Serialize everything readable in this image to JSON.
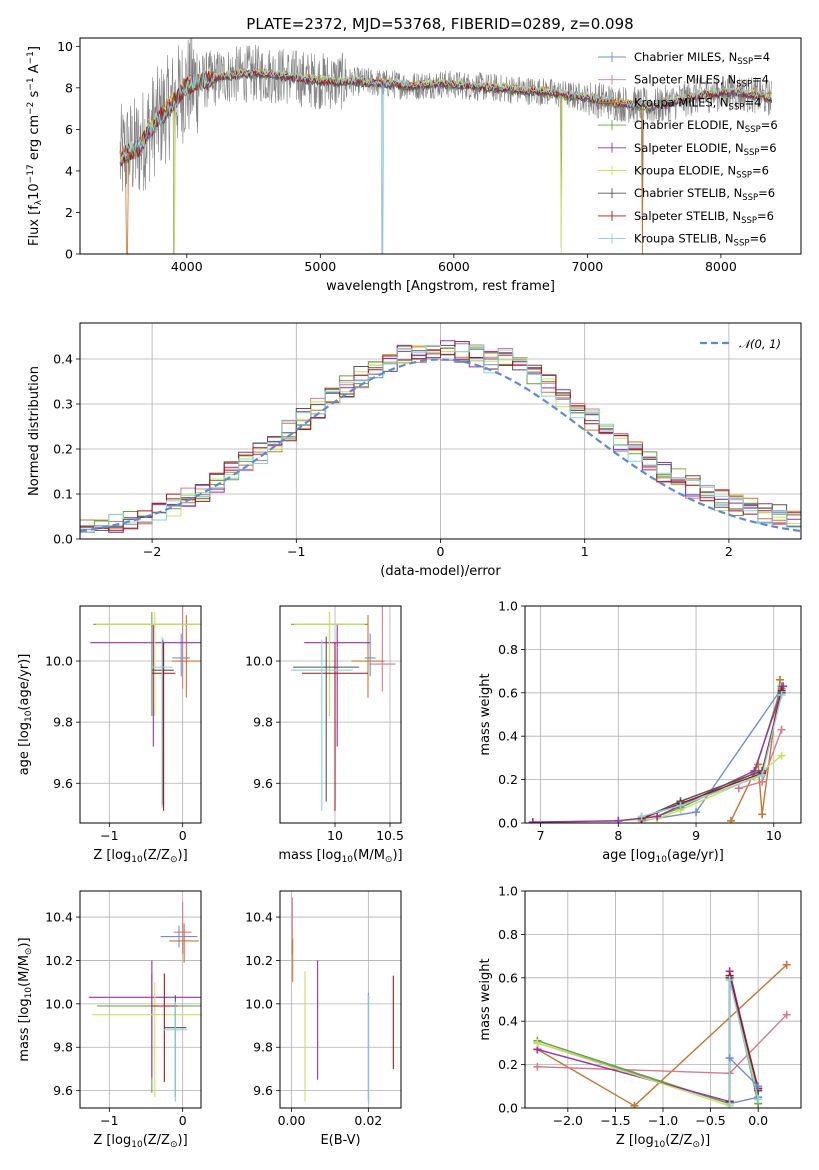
{
  "title": "PLATE=2372, MJD=53768, FIBERID=0289, z=0.098",
  "colors": {
    "chabrier_miles": "#6d8fd6",
    "salpeter_miles": "#d8798f",
    "kroupa_miles": "#c8762e",
    "chabrier_elodie": "#66a33a",
    "salpeter_elodie": "#9b2fae",
    "kroupa_elodie": "#cde05a",
    "chabrier_stelib": "#555555",
    "salpeter_stelib": "#a21818",
    "kroupa_stelib": "#86d3dd",
    "gaussian": "#5b8bd6",
    "data": "#808080"
  },
  "legend_spectrum": [
    {
      "label": "Chabrier MILES, N",
      "sub": "SSP",
      "tail": "=4",
      "color": "#6d8fd6"
    },
    {
      "label": "Salpeter MILES, N",
      "sub": "SSP",
      "tail": "=4",
      "color": "#d8798f"
    },
    {
      "label": "Kroupa MILES, N",
      "sub": "SSP",
      "tail": "=4",
      "color": "#c8762e"
    },
    {
      "label": "Chabrier ELODIE, N",
      "sub": "SSP",
      "tail": "=6",
      "color": "#66a33a"
    },
    {
      "label": "Salpeter ELODIE, N",
      "sub": "SSP",
      "tail": "=6",
      "color": "#9b2fae"
    },
    {
      "label": "Kroupa ELODIE, N",
      "sub": "SSP",
      "tail": "=6",
      "color": "#cde05a"
    },
    {
      "label": "Chabrier STELIB, N",
      "sub": "SSP",
      "tail": "=6",
      "color": "#555555"
    },
    {
      "label": "Salpeter STELIB, N",
      "sub": "SSP",
      "tail": "=6",
      "color": "#a21818"
    },
    {
      "label": "Kroupa STELIB, N",
      "sub": "SSP",
      "tail": "=6",
      "color": "#86d3dd"
    }
  ],
  "legend_hist": {
    "label": "𝒩(0, 1)",
    "color": "#5b8bd6"
  },
  "chart_data": [
    {
      "id": "spectrum",
      "type": "line",
      "xlabel": "wavelength [Angstrom, rest frame]",
      "ylabel_parts": [
        "Flux [f",
        "λ",
        "10",
        "−17",
        " erg cm",
        "−2",
        " s",
        "−1",
        " A",
        "−1",
        "]"
      ],
      "xlim": [
        3200,
        8600
      ],
      "ylim": [
        0,
        10.4
      ],
      "xticks": [
        4000,
        5000,
        6000,
        7000,
        8000
      ],
      "yticks": [
        0,
        2,
        4,
        6,
        8,
        10
      ],
      "grid": false,
      "legend_position": "upper-right",
      "model_envelope": {
        "x": [
          3500,
          3550,
          3600,
          3650,
          3700,
          3800,
          3900,
          4000,
          4100,
          4300,
          4500,
          4700,
          4900,
          5100,
          5300,
          5500,
          5700,
          5900,
          6100,
          6300,
          6500,
          6700,
          6900,
          7100,
          7300,
          7500,
          7700,
          7900,
          8100,
          8300,
          8380
        ],
        "y": [
          4.6,
          4.9,
          5.0,
          5.2,
          5.8,
          6.6,
          7.3,
          8.1,
          8.3,
          8.6,
          8.7,
          8.6,
          8.4,
          8.3,
          8.3,
          8.2,
          8.1,
          8.2,
          8.1,
          8.0,
          7.9,
          7.8,
          7.6,
          7.4,
          7.2,
          7.1,
          7.4,
          7.7,
          7.8,
          7.6,
          7.5
        ]
      }
    },
    {
      "id": "residual-histogram",
      "type": "bar",
      "xlabel": "(data-model)/error",
      "ylabel": "Normed distribution",
      "xlim": [
        -2.5,
        2.5
      ],
      "ylim": [
        0,
        0.48
      ],
      "xticks": [
        -2,
        -1,
        0,
        1,
        2
      ],
      "yticks": [
        0.0,
        0.1,
        0.2,
        0.3,
        0.4
      ],
      "grid": true,
      "bin_width": 0.1,
      "legend_position": "upper-right"
    },
    {
      "id": "age-vs-Z",
      "type": "scatter",
      "xlabel_parts": [
        "Z [log",
        "10",
        "(Z/Z",
        "⊙",
        ")]"
      ],
      "ylabel_parts": [
        "age  [log",
        "10",
        "(age/yr)]"
      ],
      "xlim": [
        -1.4,
        0.25
      ],
      "ylim": [
        9.47,
        10.18
      ],
      "xticks": [
        -1,
        0
      ],
      "yticks": [
        9.6,
        9.8,
        10.0
      ],
      "grid": true,
      "points": [
        {
          "c": "chabrier_miles",
          "x": -0.02,
          "y": 10.01,
          "xerr": 0.12,
          "yerr": [
            0.06,
            0.08
          ]
        },
        {
          "c": "salpeter_miles",
          "x": 0.0,
          "y": 10.0,
          "xerr": 0.1,
          "yerr": [
            0.09,
            0.2
          ]
        },
        {
          "c": "kroupa_miles",
          "x": 0.05,
          "y": 10.0,
          "xerr": 0.2,
          "yerr": [
            0.12,
            0.15
          ]
        },
        {
          "c": "chabrier_elodie",
          "x": -0.42,
          "y": 10.12,
          "xerr": 0.8,
          "yerr": [
            0.3,
            0.04
          ]
        },
        {
          "c": "salpeter_elodie",
          "x": -0.4,
          "y": 10.06,
          "xerr": 0.86,
          "yerr": [
            0.34,
            0.06
          ]
        },
        {
          "c": "kroupa_elodie",
          "x": -0.38,
          "y": 10.12,
          "xerr": 0.8,
          "yerr": [
            0.3,
            0.04
          ]
        },
        {
          "c": "chabrier_stelib",
          "x": -0.27,
          "y": 9.97,
          "xerr": 0.15,
          "yerr": [
            0.44,
            0.1
          ]
        },
        {
          "c": "salpeter_stelib",
          "x": -0.26,
          "y": 9.96,
          "xerr": 0.16,
          "yerr": [
            0.45,
            0.1
          ]
        },
        {
          "c": "kroupa_stelib",
          "x": -0.28,
          "y": 9.98,
          "xerr": 0.14,
          "yerr": [
            0.46,
            0.1
          ]
        }
      ]
    },
    {
      "id": "age-vs-mass",
      "type": "scatter",
      "xlabel_parts": [
        "mass [log",
        "10",
        "(M/M",
        "⊙",
        ")]"
      ],
      "xlim": [
        9.5,
        10.6
      ],
      "ylim": [
        9.47,
        10.18
      ],
      "xticks": [
        10.0,
        10.5
      ],
      "yticks": [
        9.6,
        9.8,
        10.0
      ],
      "grid": true,
      "points": [
        {
          "c": "chabrier_miles",
          "x": 10.32,
          "y": 10.01,
          "xerr": 0.05,
          "yerr": [
            0.06,
            0.08
          ]
        },
        {
          "c": "salpeter_miles",
          "x": 10.43,
          "y": 9.99,
          "xerr": 0.12,
          "yerr": [
            0.09,
            0.2
          ]
        },
        {
          "c": "kroupa_miles",
          "x": 10.3,
          "y": 10.0,
          "xerr": 0.15,
          "yerr": [
            0.12,
            0.15
          ]
        },
        {
          "c": "chabrier_elodie",
          "x": 9.95,
          "y": 10.12,
          "xerr": 0.35,
          "yerr": [
            0.3,
            0.04
          ]
        },
        {
          "c": "salpeter_elodie",
          "x": 10.02,
          "y": 10.06,
          "xerr": 0.3,
          "yerr": [
            0.34,
            0.06
          ]
        },
        {
          "c": "kroupa_elodie",
          "x": 9.95,
          "y": 10.12,
          "xerr": 0.32,
          "yerr": [
            0.3,
            0.04
          ]
        },
        {
          "c": "chabrier_stelib",
          "x": 9.92,
          "y": 9.98,
          "xerr": 0.3,
          "yerr": [
            0.44,
            0.1
          ]
        },
        {
          "c": "salpeter_stelib",
          "x": 10.0,
          "y": 9.96,
          "xerr": 0.3,
          "yerr": [
            0.45,
            0.1
          ]
        },
        {
          "c": "kroupa_stelib",
          "x": 9.88,
          "y": 9.97,
          "xerr": 0.28,
          "yerr": [
            0.46,
            0.1
          ]
        }
      ]
    },
    {
      "id": "massweight-vs-age",
      "type": "line",
      "xlabel_parts": [
        "age  [log",
        "10",
        "(age/yr)]"
      ],
      "ylabel": "mass weight",
      "xlim": [
        6.8,
        10.35
      ],
      "ylim": [
        0,
        1
      ],
      "xticks": [
        7,
        8,
        9,
        10
      ],
      "yticks": [
        0.0,
        0.2,
        0.4,
        0.6,
        0.8,
        1.0
      ],
      "grid": true,
      "series": [
        {
          "c": "kroupa_miles",
          "x": [
            9.45,
            9.8,
            9.85,
            10.08
          ],
          "y": [
            0.01,
            0.27,
            0.04,
            0.66
          ]
        },
        {
          "c": "salpeter_miles",
          "x": [
            9.55,
            9.85,
            10.1
          ],
          "y": [
            0.16,
            0.19,
            0.43
          ]
        },
        {
          "c": "chabrier_miles",
          "x": [
            8.3,
            9.0,
            10.1
          ],
          "y": [
            0.01,
            0.05,
            0.62
          ]
        },
        {
          "c": "chabrier_elodie",
          "x": [
            6.9,
            8.0,
            8.5,
            8.8,
            9.75,
            10.1
          ],
          "y": [
            0.003,
            0.01,
            0.03,
            0.07,
            0.23,
            0.63
          ]
        },
        {
          "c": "kroupa_elodie",
          "x": [
            6.9,
            8.0,
            8.5,
            8.8,
            9.75,
            10.1
          ],
          "y": [
            0.002,
            0.01,
            0.02,
            0.06,
            0.21,
            0.31
          ]
        },
        {
          "c": "salpeter_elodie",
          "x": [
            6.9,
            8.0,
            8.5,
            8.8,
            9.75,
            10.12
          ],
          "y": [
            0.004,
            0.01,
            0.03,
            0.08,
            0.24,
            0.63
          ]
        },
        {
          "c": "chabrier_stelib",
          "x": [
            8.3,
            8.8,
            9.85,
            10.1
          ],
          "y": [
            0.02,
            0.1,
            0.24,
            0.6
          ]
        },
        {
          "c": "salpeter_stelib",
          "x": [
            8.3,
            8.8,
            9.85,
            10.1
          ],
          "y": [
            0.02,
            0.09,
            0.23,
            0.61
          ]
        },
        {
          "c": "kroupa_stelib",
          "x": [
            8.3,
            8.8,
            9.85,
            10.1
          ],
          "y": [
            0.03,
            0.08,
            0.22,
            0.59
          ]
        }
      ]
    },
    {
      "id": "mass-vs-Z",
      "type": "scatter",
      "xlabel_parts": [
        "Z [log",
        "10",
        "(Z/Z",
        "⊙",
        ")]"
      ],
      "ylabel_parts": [
        "mass [log",
        "10",
        "(M/M",
        "⊙",
        ")]"
      ],
      "xlim": [
        -1.4,
        0.25
      ],
      "ylim": [
        9.52,
        10.52
      ],
      "xticks": [
        -1,
        0
      ],
      "yticks": [
        9.6,
        9.8,
        10.0,
        10.2,
        10.4
      ],
      "grid": true,
      "points": [
        {
          "c": "chabrier_miles",
          "x": -0.05,
          "y": 10.31,
          "xerr": 0.25,
          "yerr": [
            0.05,
            0.05
          ]
        },
        {
          "c": "salpeter_miles",
          "x": 0.0,
          "y": 10.33,
          "xerr": 0.12,
          "yerr": [
            0.1,
            0.14
          ]
        },
        {
          "c": "kroupa_miles",
          "x": 0.02,
          "y": 10.29,
          "xerr": 0.2,
          "yerr": [
            0.1,
            0.08
          ]
        },
        {
          "c": "chabrier_elodie",
          "x": -0.42,
          "y": 9.99,
          "xerr": 0.75,
          "yerr": [
            0.4,
            0.15
          ]
        },
        {
          "c": "salpeter_elodie",
          "x": -0.42,
          "y": 10.03,
          "xerr": 0.86,
          "yerr": [
            0.37,
            0.17
          ]
        },
        {
          "c": "kroupa_elodie",
          "x": -0.38,
          "y": 9.95,
          "xerr": 0.85,
          "yerr": [
            0.38,
            0.15
          ]
        },
        {
          "c": "chabrier_stelib",
          "x": -0.1,
          "y": 9.89,
          "xerr": 0.15,
          "yerr": [
            0.32,
            0.15
          ]
        },
        {
          "c": "salpeter_stelib",
          "x": -0.25,
          "y": 9.99,
          "xerr": 0.18,
          "yerr": [
            0.35,
            0.15
          ]
        },
        {
          "c": "kroupa_stelib",
          "x": -0.1,
          "y": 9.88,
          "xerr": 0.16,
          "yerr": [
            0.33,
            0.13
          ]
        }
      ]
    },
    {
      "id": "mass-vs-EBV",
      "type": "scatter",
      "xlabel": "E(B-V)",
      "xlim": [
        -0.003,
        0.0285
      ],
      "ylim": [
        9.52,
        10.52
      ],
      "xticks": [
        0.0,
        0.02
      ],
      "xticklabels": [
        "0.00",
        "0.02"
      ],
      "yticks": [
        9.6,
        9.8,
        10.0,
        10.2,
        10.4
      ],
      "grid": true,
      "points": [
        {
          "c": "salpeter_miles",
          "x": 0.0002,
          "y": 10.33,
          "xerr": 0,
          "yerr": [
            0.1,
            0.16
          ]
        },
        {
          "c": "kroupa_miles",
          "x": 0.0003,
          "y": 10.2,
          "xerr": 0,
          "yerr": [
            0.1,
            0.1
          ]
        },
        {
          "c": "kroupa_elodie",
          "x": 0.0035,
          "y": 9.85,
          "xerr": 0,
          "yerr": [
            0.3,
            0.3
          ]
        },
        {
          "c": "salpeter_elodie",
          "x": 0.0068,
          "y": 9.92,
          "xerr": 0,
          "yerr": [
            0.27,
            0.28
          ]
        },
        {
          "c": "chabrier_miles",
          "x": 0.02,
          "y": 9.8,
          "xerr": 0,
          "yerr": [
            0.25,
            0.25
          ]
        },
        {
          "c": "kroupa_stelib",
          "x": 0.0201,
          "y": 9.79,
          "xerr": 0,
          "yerr": [
            0.25,
            0.25
          ]
        },
        {
          "c": "salpeter_stelib",
          "x": 0.0265,
          "y": 9.92,
          "xerr": 0,
          "yerr": [
            0.22,
            0.21
          ]
        }
      ]
    },
    {
      "id": "massweight-vs-Z",
      "type": "line",
      "xlabel_parts": [
        "Z [log",
        "10",
        "(Z/Z",
        "⊙",
        ")]"
      ],
      "ylabel": "mass weight",
      "xlim": [
        -2.45,
        0.45
      ],
      "ylim": [
        0,
        1
      ],
      "xticks": [
        -2.0,
        -1.5,
        -1.0,
        -0.5,
        0.0
      ],
      "xticklabels": [
        "−2.0",
        "−1.5",
        "−1.0",
        "−0.5",
        "0.0"
      ],
      "yticks": [
        0.0,
        0.2,
        0.4,
        0.6,
        0.8,
        1.0
      ],
      "grid": true,
      "series": [
        {
          "c": "kroupa_miles",
          "x": [
            -2.32,
            -1.3,
            0.3
          ],
          "y": [
            0.27,
            0.01,
            0.66
          ]
        },
        {
          "c": "salpeter_miles",
          "x": [
            -2.32,
            -0.3,
            0.3
          ],
          "y": [
            0.19,
            0.16,
            0.43
          ]
        },
        {
          "c": "chabrier_miles",
          "x": [
            -2.32,
            -0.3,
            0.0
          ],
          "y": [
            0.3,
            0.02,
            0.05
          ]
        },
        {
          "c": "chabrier_elodie",
          "x": [
            -2.32,
            -0.3,
            -0.3,
            0.0
          ],
          "y": [
            0.31,
            0.02,
            0.6,
            0.02
          ]
        },
        {
          "c": "salpeter_elodie",
          "x": [
            -2.32,
            -0.3,
            -0.3,
            0.0
          ],
          "y": [
            0.27,
            0.03,
            0.63,
            0.08
          ]
        },
        {
          "c": "kroupa_elodie",
          "x": [
            -2.32,
            -0.3,
            -0.3,
            0.0
          ],
          "y": [
            0.3,
            0.01,
            0.6,
            0.04
          ]
        },
        {
          "c": "chabrier_stelib",
          "x": [
            -0.3,
            -0.3,
            0.0
          ],
          "y": [
            0.03,
            0.6,
            0.08
          ]
        },
        {
          "c": "salpeter_stelib",
          "x": [
            -0.3,
            -0.3,
            0.0
          ],
          "y": [
            0.03,
            0.61,
            0.09
          ]
        },
        {
          "c": "kroupa_stelib",
          "x": [
            -0.3,
            -0.3,
            0.0
          ],
          "y": [
            0.02,
            0.59,
            0.04
          ]
        },
        {
          "c": "chabrier_miles",
          "x": [
            -0.3,
            0.0
          ],
          "y": [
            0.23,
            0.1
          ]
        }
      ]
    }
  ]
}
